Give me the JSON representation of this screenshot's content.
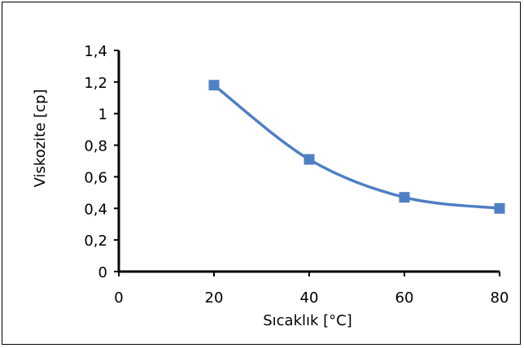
{
  "chart_data": {
    "type": "scatter",
    "title": "",
    "xlabel": "Sıcaklık [°C]",
    "ylabel": "Viskozite [cp]",
    "xlim": [
      0,
      80
    ],
    "ylim": [
      0,
      1.4
    ],
    "x_ticks": [
      0,
      20,
      40,
      60,
      80
    ],
    "y_ticks": [
      0,
      0.2,
      0.4,
      0.6,
      0.8,
      1,
      1.2,
      1.4
    ],
    "x_tick_labels": [
      "0",
      "20",
      "40",
      "60",
      "80"
    ],
    "y_tick_labels": [
      "0",
      "0,2",
      "0,4",
      "0,6",
      "0,8",
      "1",
      "1,2",
      "1,4"
    ],
    "grid": false,
    "series": [
      {
        "x": [
          20,
          40,
          60,
          80
        ],
        "values": [
          1.18,
          0.71,
          0.47,
          0.4
        ],
        "color": "#4f7fc4",
        "marker": "square",
        "line": "smooth"
      }
    ]
  }
}
